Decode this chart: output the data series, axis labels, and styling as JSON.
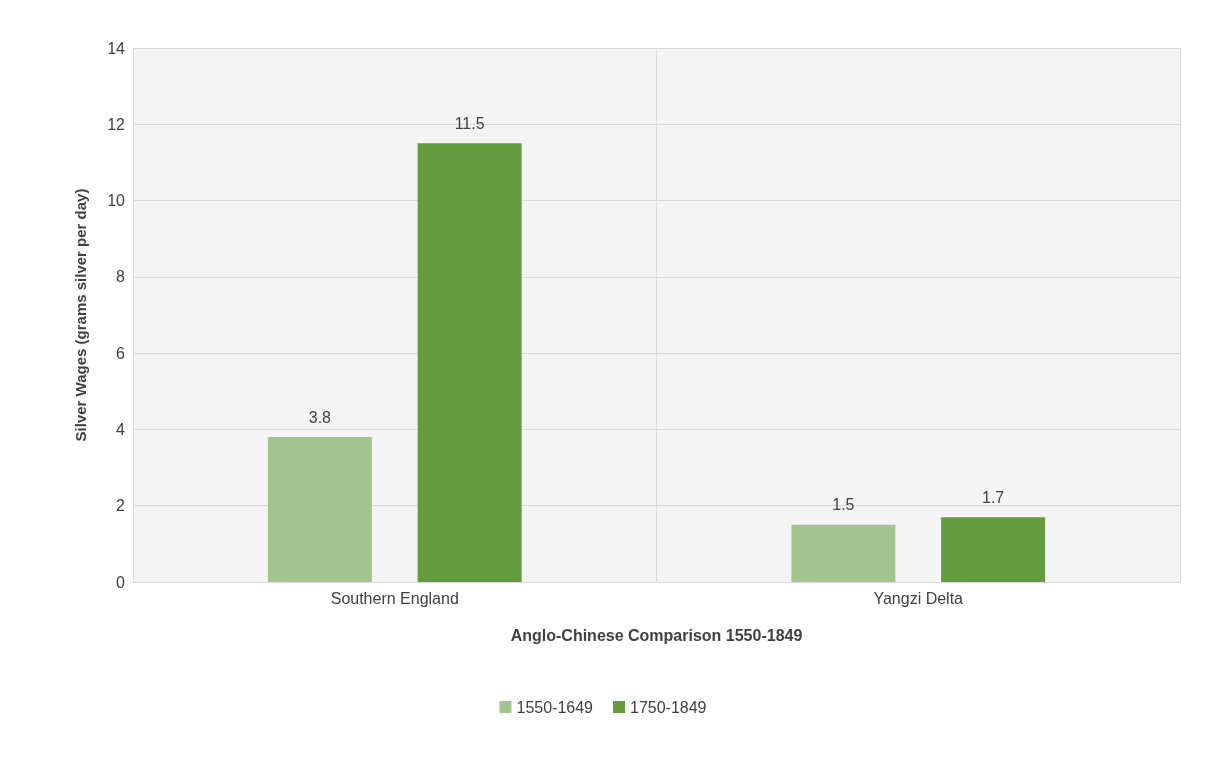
{
  "chart_data": {
    "type": "bar",
    "xlabel": "Anglo-Chinese Comparison 1550-1849",
    "ylabel": "Silver Wages (grams silver per day)",
    "categories": [
      "Southern England",
      "Yangzi Delta"
    ],
    "series": [
      {
        "name": "1550-1649",
        "color": "#a2c58f",
        "values": [
          3.8,
          1.5
        ]
      },
      {
        "name": "1750-1849",
        "color": "#629c3f",
        "values": [
          11.5,
          1.7
        ]
      }
    ],
    "ylim": [
      0,
      14
    ],
    "yticks": [
      0,
      2,
      4,
      6,
      8,
      10,
      12,
      14
    ],
    "grid": true,
    "legend": "bottom",
    "data_labels": true
  }
}
